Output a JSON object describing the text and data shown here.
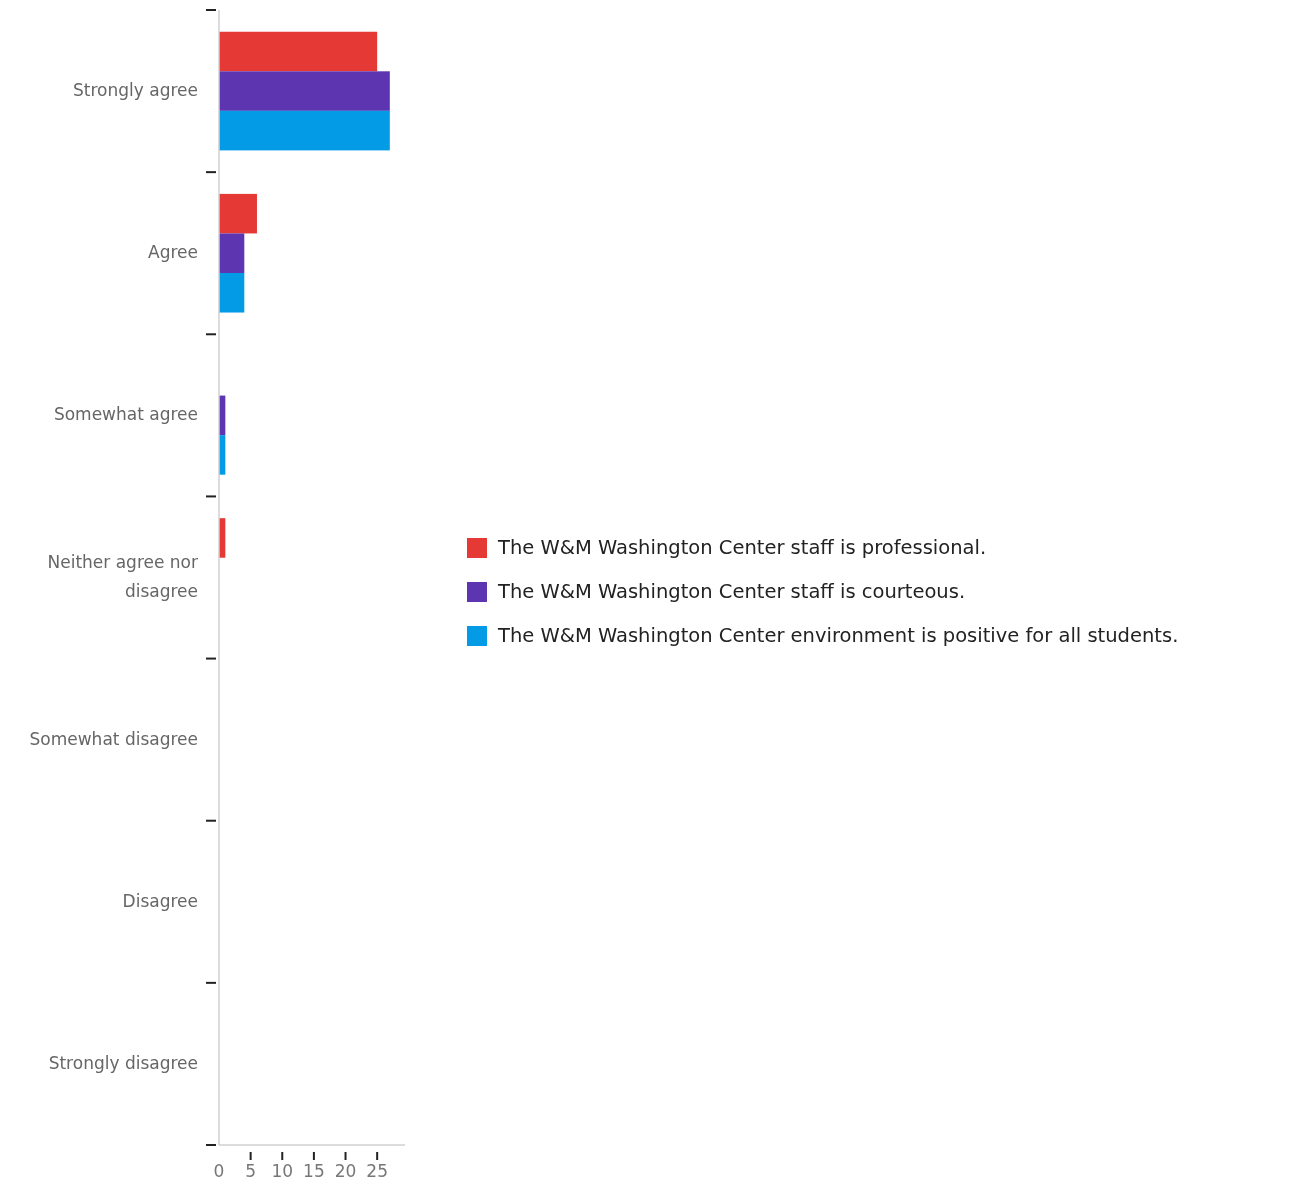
{
  "chart_data": {
    "type": "bar",
    "orientation": "horizontal",
    "categories": [
      "Strongly agree",
      "Agree",
      "Somewhat agree",
      "Neither agree nor disagree",
      "Somewhat disagree",
      "Disagree",
      "Strongly disagree"
    ],
    "series": [
      {
        "name": "The W&M Washington Center staff is professional.",
        "color": "#e53935",
        "values": [
          25,
          6,
          0,
          1,
          0,
          0,
          0
        ]
      },
      {
        "name": "The W&M Washington Center staff is courteous.",
        "color": "#5e35b1",
        "values": [
          27,
          4,
          1,
          0,
          0,
          0,
          0
        ]
      },
      {
        "name": "The W&M Washington Center environment is positive for all students.",
        "color": "#039be5",
        "values": [
          27,
          4,
          1,
          0,
          0,
          0,
          0
        ]
      }
    ],
    "xlim": [
      0,
      29.4
    ],
    "xticks": [
      0,
      5,
      10,
      15,
      20,
      25
    ],
    "legend": "right",
    "grid": false
  }
}
